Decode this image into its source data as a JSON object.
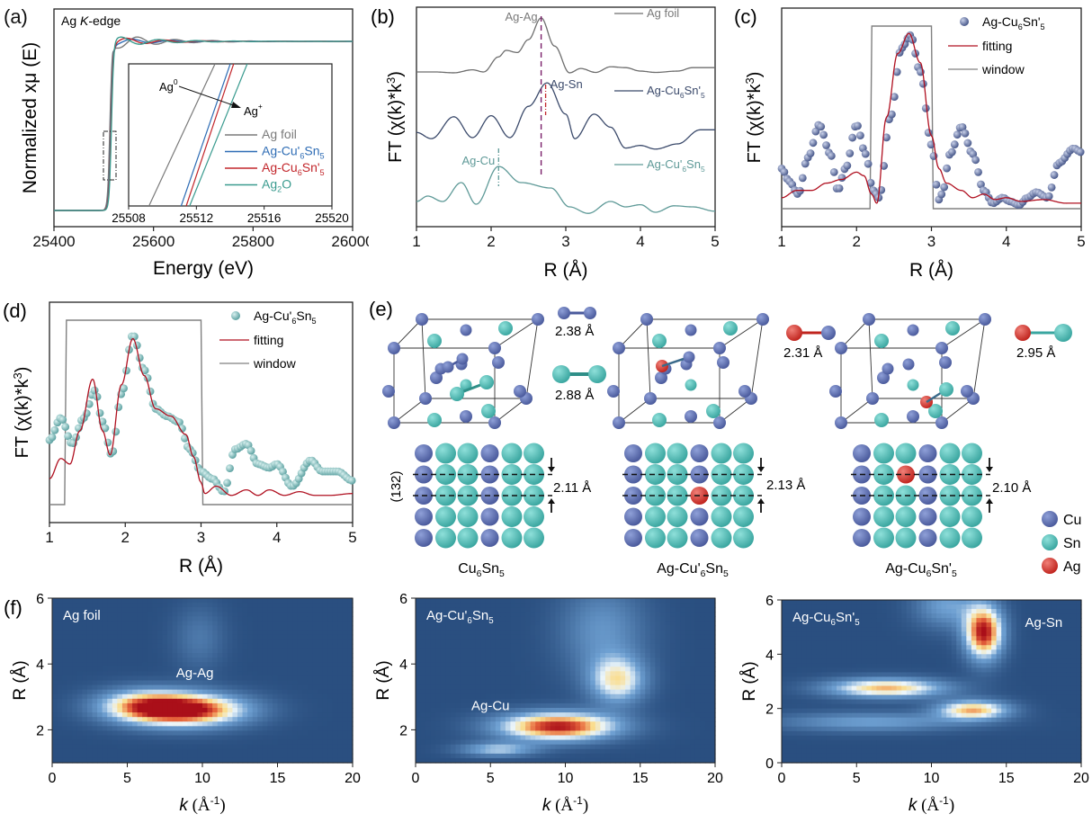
{
  "figure": {
    "panel_labels": [
      "(a)",
      "(b)",
      "(c)",
      "(d)",
      "(e)",
      "(f)"
    ]
  },
  "colors": {
    "ag_foil": "#7a7a7a",
    "ag_cu_prime6sn5": "#2f6db5",
    "ag_cu6sn_prime5": "#c2262b",
    "ag2o": "#3a9b8f",
    "b_ag_foil": "#6e6e6e",
    "b_ag_cu6sn_prime5": "#3b4a6b",
    "b_ag_cu_prime6sn5": "#5f9a98",
    "cu_atom": "#4a5a9c",
    "sn_atom": "#3aa6a0",
    "ag_atom": "#c0241e",
    "fit": "#b01020",
    "window": "#808080",
    "heat_low": "#2a4f80",
    "heat_high": "#b3141c"
  },
  "chart_data": [
    {
      "id": "a",
      "type": "line",
      "title": "Ag K-edge",
      "xlabel": "Energy (eV)",
      "ylabel": "Normalized xμ (E)",
      "xlim": [
        25400,
        26000
      ],
      "xticks": [
        25400,
        25600,
        25800,
        26000
      ],
      "edge_energy": 25514,
      "series": [
        {
          "name": "Ag foil",
          "key": "ag_foil"
        },
        {
          "name": "Ag-Cu'6Sn5",
          "key": "ag_cu_prime6sn5"
        },
        {
          "name": "Ag-Cu6Sn'5",
          "key": "ag_cu6sn_prime5"
        },
        {
          "name": "Ag2O",
          "key": "ag2o"
        }
      ],
      "inset": {
        "xlim": [
          25508,
          25520
        ],
        "xticks": [
          25508,
          25512,
          25516,
          25520
        ],
        "annotation_start": "Ag0",
        "annotation_end": "Ag+",
        "edge_crossings": [
          {
            "series": "Ag foil",
            "x_bottom": 25509.2,
            "x_top": 25513.1
          },
          {
            "series": "Ag-Cu'6Sn5",
            "x_bottom": 25511.1,
            "x_top": 25514.0
          },
          {
            "series": "Ag-Cu6Sn'5",
            "x_bottom": 25511.4,
            "x_top": 25514.2
          },
          {
            "series": "Ag2O",
            "x_bottom": 25511.6,
            "x_top": 25515.0
          }
        ]
      }
    },
    {
      "id": "b",
      "type": "line",
      "xlabel": "R (Å)",
      "ylabel": "FT (χ(k)*k³)",
      "xlim": [
        1,
        5
      ],
      "xticks": [
        1,
        2,
        3,
        4,
        5
      ],
      "series": [
        {
          "name": "Ag foil",
          "key": "b_ag_foil",
          "offset": 2.0,
          "x": [
            1.0,
            1.25,
            1.5,
            1.75,
            1.9,
            2.1,
            2.2,
            2.35,
            2.5,
            2.67,
            2.85,
            3.05,
            3.2,
            3.4,
            3.6,
            3.8,
            4.0,
            4.2,
            4.5,
            4.7,
            5.0
          ],
          "y": [
            0.0,
            0.0,
            -0.02,
            0.05,
            0.0,
            0.35,
            0.5,
            0.45,
            0.75,
            1.25,
            0.6,
            -0.02,
            0.08,
            -0.01,
            0.12,
            0.1,
            0.02,
            -0.01,
            0.02,
            0.1,
            0.1
          ]
        },
        {
          "name": "Ag-Cu6Sn'5",
          "key": "b_ag_cu6sn_prime5",
          "offset": 1.0,
          "x": [
            1.0,
            1.2,
            1.5,
            1.75,
            2.0,
            2.25,
            2.5,
            2.75,
            3.0,
            3.12,
            3.38,
            3.6,
            3.8,
            4.0,
            4.2,
            4.5,
            4.8,
            5.0
          ],
          "y": [
            0.1,
            -0.02,
            0.4,
            0.0,
            0.42,
            0.0,
            0.6,
            1.05,
            0.45,
            -0.02,
            0.45,
            0.2,
            -0.2,
            -0.15,
            -0.22,
            -0.12,
            0.15,
            0.15
          ]
        },
        {
          "name": "Ag-Cu'6Sn5",
          "key": "b_ag_cu_prime6sn5",
          "offset": 0.0,
          "x": [
            1.0,
            1.15,
            1.35,
            1.6,
            1.8,
            2.1,
            2.4,
            2.8,
            3.05,
            3.3,
            3.6,
            3.8,
            4.0,
            4.2,
            4.45,
            4.7,
            5.0
          ],
          "y": [
            0.1,
            0.2,
            0.1,
            0.45,
            0.05,
            0.75,
            0.45,
            0.35,
            0.0,
            -0.12,
            0.1,
            0.0,
            0.04,
            -0.1,
            0.02,
            0.0,
            -0.08
          ]
        }
      ],
      "annotations": [
        {
          "text": "Ag-Ag",
          "x": 2.67
        },
        {
          "text": "Ag-Sn",
          "x": 2.73
        },
        {
          "text": "Ag-Cu",
          "x": 2.1
        }
      ]
    },
    {
      "id": "c",
      "type": "scatter",
      "xlabel": "R (Å)",
      "ylabel": "FT (χ(k)*k³)",
      "xlim": [
        1,
        5
      ],
      "xticks": [
        1,
        2,
        3,
        4,
        5
      ],
      "legend": [
        "Ag-Cu6Sn'5",
        "fitting",
        "window"
      ],
      "legend_position": "top-right",
      "data": {
        "x": [
          1.0,
          1.1,
          1.22,
          1.35,
          1.5,
          1.65,
          1.75,
          1.85,
          2.0,
          2.12,
          2.22,
          2.3,
          2.45,
          2.6,
          2.72,
          2.85,
          3.0,
          3.1,
          3.14,
          3.25,
          3.4,
          3.55,
          3.7,
          3.82,
          3.95,
          4.05,
          4.17,
          4.28,
          4.4,
          4.55,
          4.7,
          4.9,
          5.0
        ],
        "y": [
          0.22,
          0.15,
          0.08,
          0.28,
          0.46,
          0.3,
          0.1,
          0.22,
          0.46,
          0.3,
          0.1,
          0.06,
          0.5,
          0.88,
          0.95,
          0.75,
          0.35,
          0.05,
          0.08,
          0.3,
          0.45,
          0.3,
          0.1,
          0.03,
          0.06,
          0.04,
          0.02,
          0.06,
          0.09,
          0.06,
          0.25,
          0.33,
          0.31
        ]
      },
      "fitting": {
        "x": [
          1.0,
          1.2,
          1.4,
          1.6,
          1.8,
          2.0,
          2.1,
          2.2,
          2.27,
          2.4,
          2.55,
          2.7,
          2.85,
          3.0,
          3.1,
          3.2,
          3.4,
          3.55,
          3.7,
          3.85,
          4.0,
          4.2,
          4.5,
          4.8,
          5.0
        ],
        "y": [
          0.06,
          0.1,
          0.1,
          0.14,
          0.16,
          0.2,
          0.18,
          0.08,
          0.03,
          0.5,
          0.85,
          0.96,
          0.8,
          0.4,
          0.22,
          0.14,
          0.1,
          0.06,
          0.08,
          0.05,
          0.06,
          0.04,
          0.05,
          0.03,
          0.03
        ]
      },
      "window": {
        "x_start": 2.18,
        "x_end": 3.0,
        "low": 0.0,
        "high": 1.0
      }
    },
    {
      "id": "d",
      "type": "scatter",
      "xlabel": "R (Å)",
      "ylabel": "FT (χ(k)*k³)",
      "xlim": [
        1,
        5
      ],
      "xticks": [
        1,
        2,
        3,
        4,
        5
      ],
      "legend": [
        "Ag-Cu'6Sn5",
        "fitting",
        "window"
      ],
      "legend_position": "top-right",
      "data": {
        "x": [
          1.0,
          1.15,
          1.3,
          1.45,
          1.6,
          1.7,
          1.82,
          1.95,
          2.1,
          2.25,
          2.4,
          2.55,
          2.7,
          2.85,
          3.0,
          3.15,
          3.3,
          3.45,
          3.6,
          3.75,
          3.9,
          4.0,
          4.2,
          4.45,
          4.6,
          4.8,
          5.0
        ],
        "y": [
          0.35,
          0.47,
          0.33,
          0.47,
          0.62,
          0.45,
          0.27,
          0.6,
          0.92,
          0.73,
          0.52,
          0.48,
          0.45,
          0.3,
          0.18,
          0.14,
          0.07,
          0.3,
          0.33,
          0.22,
          0.2,
          0.22,
          0.1,
          0.24,
          0.18,
          0.18,
          0.13
        ]
      },
      "fitting": {
        "x": [
          1.0,
          1.15,
          1.27,
          1.4,
          1.57,
          1.7,
          1.8,
          1.95,
          2.1,
          2.25,
          2.4,
          2.6,
          2.8,
          2.9,
          3.0,
          3.05,
          3.2,
          3.4,
          3.6,
          3.75,
          3.9,
          4.1,
          4.3,
          4.5,
          4.7,
          5.0
        ],
        "y": [
          0.14,
          0.25,
          0.22,
          0.4,
          0.68,
          0.4,
          0.27,
          0.65,
          0.9,
          0.7,
          0.52,
          0.48,
          0.38,
          0.26,
          0.12,
          0.06,
          0.1,
          0.05,
          0.08,
          0.05,
          0.08,
          0.05,
          0.07,
          0.05,
          0.05,
          0.06
        ]
      },
      "window": {
        "x_start": 1.2,
        "x_end": 3.0,
        "low": 0.0,
        "high": 1.0
      }
    },
    {
      "id": "f1",
      "type": "heatmap",
      "title": "Ag foil",
      "xlabel": "k (Å⁻¹)",
      "ylabel": "R (Å)",
      "xlim": [
        0,
        20
      ],
      "ylim": [
        1,
        6
      ],
      "xticks": [
        0,
        5,
        10,
        15,
        20
      ],
      "yticks": [
        2,
        4,
        6
      ],
      "annotation": {
        "text": "Ag-Ag",
        "k": 9.5,
        "R": 3.6
      },
      "peaks": [
        {
          "k": 9.0,
          "R": 2.6,
          "sk": 2.8,
          "sR": 0.35,
          "amp": 1.0
        },
        {
          "k": 6.0,
          "R": 2.75,
          "sk": 2.2,
          "sR": 0.35,
          "amp": 0.55
        },
        {
          "k": 9.8,
          "R": 4.8,
          "sk": 1.2,
          "sR": 0.7,
          "amp": 0.18
        }
      ]
    },
    {
      "id": "f2",
      "type": "heatmap",
      "title": "Ag-Cu'6Sn5",
      "xlabel": "k (Å⁻¹)",
      "ylabel": "R (Å)",
      "xlim": [
        0,
        20
      ],
      "ylim": [
        1,
        6
      ],
      "xticks": [
        0,
        5,
        10,
        15,
        20
      ],
      "yticks": [
        2,
        4,
        6
      ],
      "annotation": {
        "text": "Ag-Cu",
        "k": 5.0,
        "R": 2.6
      },
      "peaks": [
        {
          "k": 9.5,
          "R": 2.1,
          "sk": 2.8,
          "sR": 0.3,
          "amp": 1.0
        },
        {
          "k": 13.5,
          "R": 3.5,
          "sk": 1.3,
          "sR": 0.5,
          "amp": 0.6
        },
        {
          "k": 5.5,
          "R": 1.4,
          "sk": 1.8,
          "sR": 0.15,
          "amp": 0.45
        },
        {
          "k": 12.5,
          "R": 5.0,
          "sk": 2.0,
          "sR": 1.0,
          "amp": 0.3
        }
      ]
    },
    {
      "id": "f3",
      "type": "heatmap",
      "title": "Ag-Cu6Sn'5",
      "xlabel": "k (Å⁻¹)",
      "ylabel": "R (Å)",
      "xlim": [
        0,
        20
      ],
      "ylim": [
        0,
        6
      ],
      "xticks": [
        0,
        5,
        10,
        15,
        20
      ],
      "yticks": [
        0,
        2,
        4,
        6
      ],
      "annotation": {
        "text": "Ag-Sn",
        "k": 17.5,
        "R": 5.0
      },
      "peaks": [
        {
          "k": 13.5,
          "R": 4.8,
          "sk": 0.9,
          "sR": 0.7,
          "amp": 1.0
        },
        {
          "k": 7.0,
          "R": 2.75,
          "sk": 2.8,
          "sR": 0.25,
          "amp": 0.75
        },
        {
          "k": 12.8,
          "R": 1.95,
          "sk": 1.7,
          "sR": 0.25,
          "amp": 0.75
        },
        {
          "k": 6.0,
          "R": 1.5,
          "sk": 4.5,
          "sR": 0.25,
          "amp": 0.35
        },
        {
          "k": 11.0,
          "R": 5.8,
          "sk": 1.5,
          "sR": 0.6,
          "amp": 0.35
        }
      ]
    }
  ],
  "structures": {
    "bond_lengths": [
      {
        "pair": "Cu-Cu",
        "label": "2.38 Å"
      },
      {
        "pair": "Sn-Sn",
        "label": "2.88 Å"
      },
      {
        "pair": "Ag-Cu",
        "label": "2.31 Å"
      },
      {
        "pair": "Ag-Sn",
        "label": "2.95 Å"
      }
    ],
    "plane_label": "(132)",
    "spacings": [
      "2.11 Å",
      "2.13 Å",
      "2.10 Å"
    ],
    "names": [
      "Cu6Sn5",
      "Ag-Cu'6Sn5",
      "Ag-Cu6Sn'5"
    ],
    "legend": [
      "Cu",
      "Sn",
      "Ag"
    ]
  }
}
